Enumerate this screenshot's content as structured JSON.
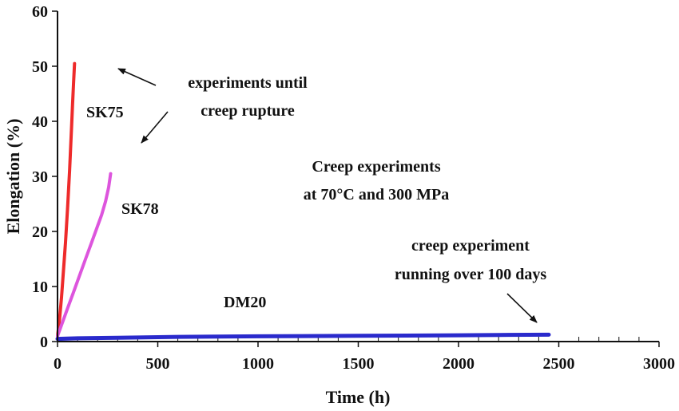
{
  "chart_data": {
    "type": "line",
    "xlabel": "Time (h)",
    "ylabel": "Elongation (%)",
    "xlim": [
      0,
      3000
    ],
    "ylim": [
      0,
      60
    ],
    "xticks": [
      0,
      500,
      1000,
      1500,
      2000,
      2500,
      3000
    ],
    "yticks": [
      0,
      10,
      20,
      30,
      40,
      50,
      60
    ],
    "grid": false,
    "legend": "none",
    "series": [
      {
        "name": "SK75",
        "color": "#ee2b2b",
        "x": [
          0,
          10,
          20,
          30,
          40,
          50,
          60,
          70,
          75,
          80,
          85
        ],
        "y": [
          1,
          4,
          8,
          13,
          18,
          24,
          31,
          39,
          43,
          47,
          50.5
        ]
      },
      {
        "name": "SK78",
        "color": "#dd55dd",
        "x": [
          0,
          20,
          50,
          80,
          110,
          140,
          170,
          200,
          220,
          240,
          255,
          265
        ],
        "y": [
          1,
          3,
          6,
          9,
          12,
          15,
          18,
          21,
          23,
          25.5,
          28,
          30.5
        ]
      },
      {
        "name": "DM20",
        "color": "#2a2acc",
        "x": [
          0,
          100,
          300,
          600,
          1000,
          1500,
          2000,
          2200,
          2450
        ],
        "y": [
          0.5,
          0.6,
          0.7,
          0.85,
          0.95,
          1.05,
          1.15,
          1.2,
          1.25
        ]
      }
    ],
    "annotations": [
      {
        "id": "experiments",
        "lines": [
          "experiments until",
          "creep rupture"
        ]
      },
      {
        "id": "conditions",
        "lines": [
          "Creep experiments",
          "at 70°C and 300 MPa"
        ]
      },
      {
        "id": "running",
        "lines": [
          "creep experiment",
          "running over 100 days"
        ]
      }
    ]
  }
}
